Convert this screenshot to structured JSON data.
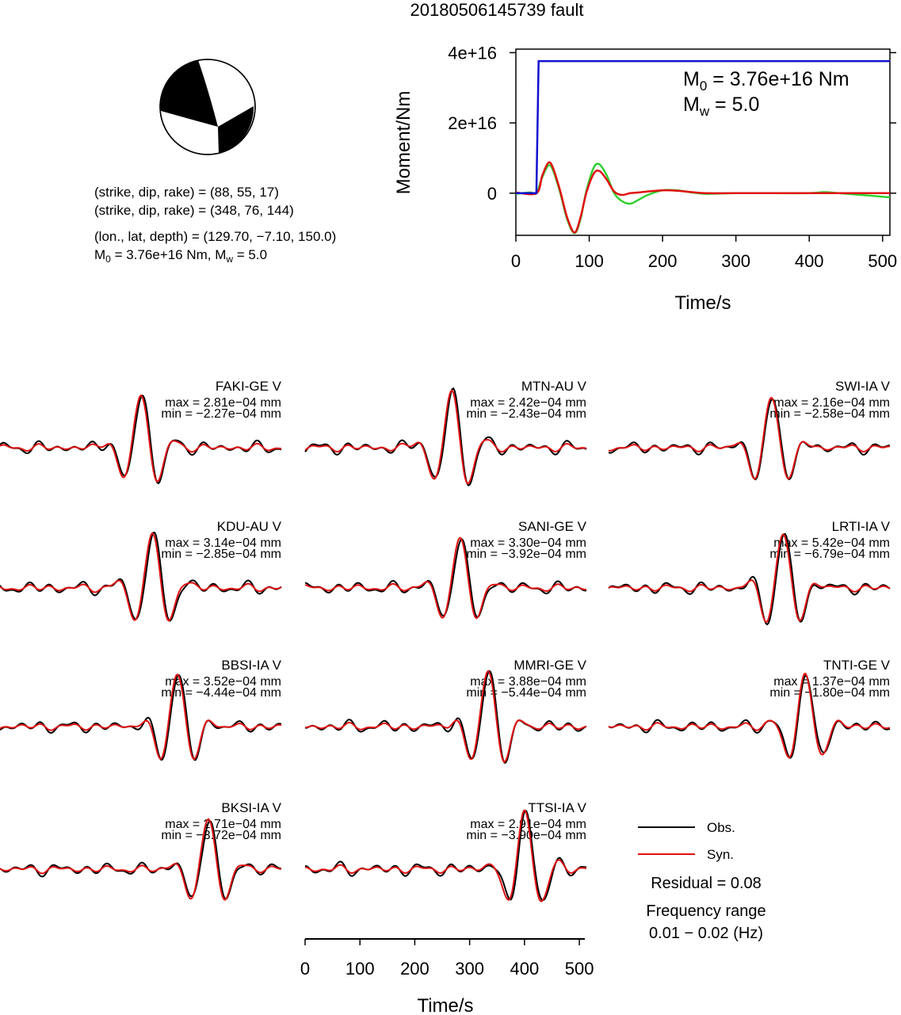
{
  "title": "20180506145739 fault",
  "mechanism": {
    "np1": "(strike, dip, rake) = (88, 55, 17)",
    "np2": "(strike, dip, rake) = (348, 76, 144)",
    "location": "(lon., lat, depth) = (129.70, −7.10, 150.0)",
    "moment_main": "M",
    "moment_sub": "0",
    "moment_rest": " = 3.76e+16 Nm, M",
    "mw_sub": "w",
    "mw_rest": " = 5.0"
  },
  "moment_chart": {
    "ylabel": "Moment/Nm",
    "xlabel": "Time/s",
    "x_ticks": [
      "0",
      "100",
      "200",
      "300",
      "400",
      "500"
    ],
    "y_ticks": [
      "0",
      "2e+16",
      "4e+16"
    ],
    "m0_main": "M",
    "m0_sub": "0",
    "m0_rest": " = 3.76e+16 Nm",
    "mw_main": "M",
    "mw_sub": "w",
    "mw_rest": " = 5.0"
  },
  "waveform_axis": {
    "xlabel": "Time/s",
    "x_ticks": [
      "0",
      "100",
      "200",
      "300",
      "400",
      "500"
    ]
  },
  "legend": {
    "obs": "Obs.",
    "syn": "Syn.",
    "residual": "Residual = 0.08",
    "freq_label": "Frequency range",
    "freq_value": "0.01 − 0.02 (Hz)"
  },
  "colors": {
    "obs": "#000000",
    "syn": "#e01010",
    "moment": "#1010d0",
    "green": "#30d030"
  },
  "chart_data": [
    {
      "type": "line",
      "xlim": [
        0,
        510
      ],
      "ylim": [
        -1.2e+16,
        4.1e+16
      ],
      "series": [
        {
          "name": "moment",
          "x": [
            0,
            28,
            31,
            510
          ],
          "y": [
            0,
            0,
            3.76e+16,
            3.76e+16
          ]
        },
        {
          "name": "obs",
          "x": [
            0,
            20,
            28,
            36,
            44,
            50,
            60,
            70,
            80,
            88,
            96,
            106,
            114,
            124,
            134,
            144,
            156,
            168,
            180,
            200,
            220,
            240,
            260,
            300,
            350,
            400,
            420,
            440,
            470,
            500,
            510
          ],
          "y": [
            -200000000000000.0,
            200000000000000.0,
            0.0,
            4500000000000000.0,
            7800000000000000.0,
            6800000000000000.0,
            500000000000000.0,
            -7500000000000000.0,
            -1.14e+16,
            -7500000000000000.0,
            500000000000000.0,
            7200000000000000.0,
            8200000000000000.0,
            5000000000000000.0,
            0.0,
            -2200000000000000.0,
            -3000000000000000.0,
            -1800000000000000.0,
            -500000000000000.0,
            800000000000000.0,
            800000000000000.0,
            200000000000000.0,
            -200000000000000.0,
            0.0,
            0.0,
            0.0,
            300000000000000.0,
            0.0,
            -500000000000000.0,
            -1000000000000000.0,
            -1200000000000000.0
          ]
        },
        {
          "name": "syn",
          "x": [
            0,
            28,
            36,
            44,
            50,
            60,
            70,
            80,
            88,
            96,
            106,
            114,
            124,
            134,
            144,
            156,
            168,
            180,
            200,
            220,
            240,
            260,
            300,
            350,
            400,
            420,
            440,
            470,
            500,
            510
          ],
          "y": [
            200000000000000.0,
            0.0,
            5000000000000000.0,
            8600000000000000.0,
            7500000000000000.0,
            1000000000000000.0,
            -7000000000000000.0,
            -1.12e+16,
            -7000000000000000.0,
            0.0,
            5500000000000000.0,
            6300000000000000.0,
            3800000000000000.0,
            500000000000000.0,
            -500000000000000.0,
            0.0,
            200000000000000.0,
            500000000000000.0,
            800000000000000.0,
            700000000000000.0,
            300000000000000.0,
            0.0,
            0.0,
            0.0,
            0.0,
            0.0,
            0.0,
            0.0,
            0.0,
            0.0
          ]
        }
      ]
    },
    {
      "type": "line",
      "stations": [
        {
          "name": "FAKI-GE V",
          "max": "max = 2.81e−04 mm",
          "min": "min = −2.27e−04 mm"
        },
        {
          "name": "MTN-AU V",
          "max": "max = 2.42e−04 mm",
          "min": "min = −2.43e−04 mm"
        },
        {
          "name": "SWI-IA V",
          "max": "max = 2.16e−04 mm",
          "min": "min = −2.58e−04 mm"
        },
        {
          "name": "KDU-AU V",
          "max": "max = 3.14e−04 mm",
          "min": "min = −2.85e−04 mm"
        },
        {
          "name": "SANI-GE V",
          "max": "max = 3.30e−04 mm",
          "min": "min = −3.92e−04 mm"
        },
        {
          "name": "LRTI-IA V",
          "max": "max = 5.42e−04 mm",
          "min": "min = −6.79e−04 mm"
        },
        {
          "name": "BBSI-IA V",
          "max": "max = 3.52e−04 mm",
          "min": "min = −4.44e−04 mm"
        },
        {
          "name": "MMRI-GE V",
          "max": "max = 3.88e−04 mm",
          "min": "min = −5.44e−04 mm"
        },
        {
          "name": "TNTI-GE V",
          "max": "max = 1.37e−04 mm",
          "min": "min = −1.80e−04 mm"
        },
        {
          "name": "BKSI-IA V",
          "max": "max = 2.71e−04 mm",
          "min": "min = −3.72e−04 mm"
        },
        {
          "name": "TTSI-IA V",
          "max": "max = 2.91e−04 mm",
          "min": "min = −3.90e−04 mm"
        }
      ]
    }
  ]
}
